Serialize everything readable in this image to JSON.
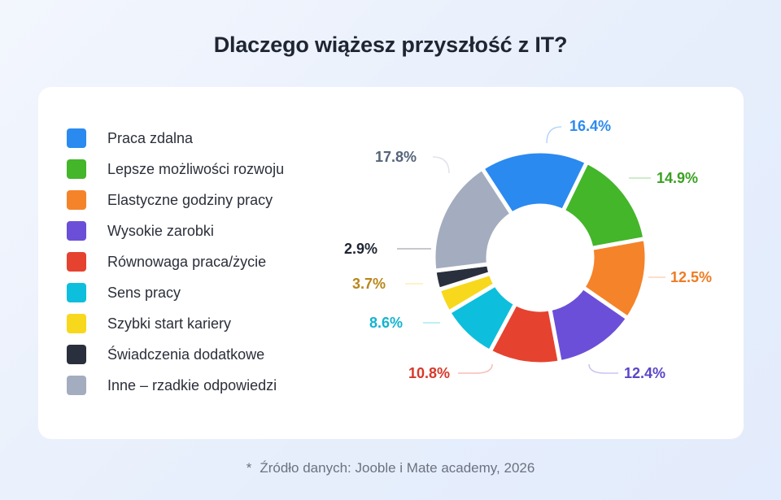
{
  "title": "Dlaczego wiążesz przyszłość z IT?",
  "footnote": {
    "star": "*",
    "text": "Źródło danych: Jooble i Mate academy, 2026"
  },
  "chart_data": {
    "type": "pie",
    "subtype": "donut",
    "title": "Dlaczego wiążesz przyszłość z IT?",
    "legend_position": "left",
    "start_angle_deg": -33,
    "direction": "clockwise",
    "categories": [
      "Praca zdalna",
      "Lepsze możliwości rozwoju",
      "Elastyczne godziny pracy",
      "Wysokie zarobki",
      "Równowaga praca/życie",
      "Sens pracy",
      "Szybki start kariery",
      "Świadczenia dodatkowe",
      "Inne – rzadkie odpowiedzi"
    ],
    "values": [
      16.4,
      14.9,
      12.5,
      12.4,
      10.8,
      8.6,
      3.7,
      2.9,
      17.8
    ],
    "labels": [
      "16.4%",
      "14.9%",
      "12.5%",
      "12.4%",
      "10.8%",
      "8.6%",
      "3.7%",
      "2.9%",
      "17.8%"
    ],
    "colors": [
      "#2b8aef",
      "#43b62a",
      "#f5832a",
      "#6b4fd8",
      "#e5432f",
      "#0dbfdc",
      "#f8d81c",
      "#2a2f3d",
      "#a3adbf"
    ],
    "label_colors": [
      "#2b8aef",
      "#3aa122",
      "#ef7b22",
      "#5b44c9",
      "#d8382a",
      "#12b4d1",
      "#b8861a",
      "#1f2533",
      "#55647a"
    ]
  },
  "legend": {
    "items": [
      {
        "label": "Praca zdalna",
        "color": "#2b8aef"
      },
      {
        "label": "Lepsze możliwości rozwoju",
        "color": "#43b62a"
      },
      {
        "label": "Elastyczne godziny pracy",
        "color": "#f5832a"
      },
      {
        "label": "Wysokie zarobki",
        "color": "#6b4fd8"
      },
      {
        "label": "Równowaga praca/życie",
        "color": "#e5432f"
      },
      {
        "label": "Sens pracy",
        "color": "#0dbfdc"
      },
      {
        "label": "Szybki start kariery",
        "color": "#f8d81c"
      },
      {
        "label": "Świadczenia dodatkowe",
        "color": "#2a2f3d"
      },
      {
        "label": "Inne – rzadkie odpowiedzi",
        "color": "#a3adbf"
      }
    ]
  }
}
